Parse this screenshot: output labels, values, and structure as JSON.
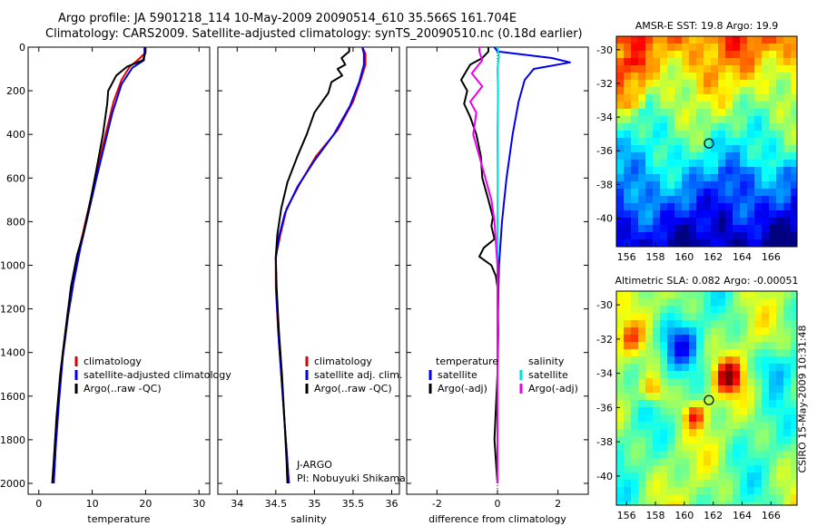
{
  "header": {
    "line1": "Argo profile: JA 5901218_114 10-May-2009 20090514_610 35.566S 161.704E",
    "line2": "Climatology: CARS2009. Satellite-adjusted climatology: synTS_20090510.nc (0.18d earlier)"
  },
  "credit": "CSIRO 15-May-2009 10:31:48",
  "colors": {
    "red": "#dd0000",
    "blue": "#0000ee",
    "black": "#000000",
    "cyan": "#00dddd",
    "magenta": "#ee00ee"
  },
  "chart_data": [
    {
      "id": "temperature",
      "type": "line",
      "xlabel": "temperature",
      "ylabel": "",
      "xlim": [
        -2,
        32
      ],
      "ylim": [
        0,
        2050
      ],
      "y_inverted": true,
      "xticks": [
        0,
        10,
        20,
        30
      ],
      "yticks": [
        0,
        200,
        400,
        600,
        800,
        1000,
        1200,
        1400,
        1600,
        1800,
        2000
      ],
      "legend": {
        "position": "lower-right",
        "entries": [
          "climatology",
          "satellite-adjusted climatology",
          "Argo(..raw -QC)"
        ]
      },
      "series": [
        {
          "name": "climatology",
          "color": "red",
          "points": [
            [
              20,
              0
            ],
            [
              20,
              25
            ],
            [
              18.5,
              60
            ],
            [
              17,
              90
            ],
            [
              15.5,
              150
            ],
            [
              14,
              250
            ],
            [
              12.5,
              400
            ],
            [
              11,
              560
            ],
            [
              9.5,
              720
            ],
            [
              8,
              880
            ],
            [
              6.5,
              1050
            ],
            [
              5.5,
              1200
            ],
            [
              4.5,
              1400
            ],
            [
              3.8,
              1600
            ],
            [
              3.2,
              1800
            ],
            [
              2.8,
              2000
            ]
          ]
        },
        {
          "name": "satellite-adjusted climatology",
          "color": "blue",
          "points": [
            [
              19.8,
              0
            ],
            [
              19.8,
              25
            ],
            [
              19.7,
              60
            ],
            [
              17.5,
              95
            ],
            [
              15.5,
              170
            ],
            [
              13.8,
              300
            ],
            [
              12.3,
              450
            ],
            [
              10.8,
              600
            ],
            [
              9.3,
              760
            ],
            [
              7.8,
              920
            ],
            [
              6.5,
              1080
            ],
            [
              5.5,
              1230
            ],
            [
              4.5,
              1420
            ],
            [
              3.8,
              1620
            ],
            [
              3.2,
              1820
            ],
            [
              2.8,
              2000
            ]
          ]
        },
        {
          "name": "Argo(..raw -QC)",
          "color": "black",
          "points": [
            [
              19.9,
              0
            ],
            [
              19.9,
              30
            ],
            [
              19.5,
              60
            ],
            [
              16.5,
              90
            ],
            [
              14.5,
              130
            ],
            [
              13,
              200
            ],
            [
              12.8,
              260
            ],
            [
              12,
              400
            ],
            [
              10.8,
              560
            ],
            [
              9.7,
              700
            ],
            [
              8.4,
              850
            ],
            [
              7.2,
              950
            ],
            [
              6,
              1100
            ],
            [
              5,
              1300
            ],
            [
              4,
              1500
            ],
            [
              3.3,
              1700
            ],
            [
              2.8,
              1900
            ],
            [
              2.5,
              2000
            ]
          ]
        }
      ]
    },
    {
      "id": "salinity",
      "type": "line",
      "xlabel": "salinity",
      "ylabel": "",
      "xlim": [
        33.75,
        36.1
      ],
      "ylim": [
        0,
        2050
      ],
      "y_inverted": true,
      "xticks": [
        34,
        34.5,
        35,
        35.5,
        36
      ],
      "yticks": [
        0,
        200,
        400,
        600,
        800,
        1000,
        1200,
        1400,
        1600,
        1800,
        2000
      ],
      "legend": {
        "position": "lower-right",
        "entries": [
          "climatology",
          "satellite adj. clim.",
          "Argo(..raw -QC)"
        ]
      },
      "annotations": [
        "J-ARGO",
        "PI: Nobuyuki Shikama"
      ],
      "series": [
        {
          "name": "climatology",
          "color": "red",
          "points": [
            [
              35.62,
              0
            ],
            [
              35.66,
              30
            ],
            [
              35.66,
              80
            ],
            [
              35.6,
              150
            ],
            [
              35.5,
              250
            ],
            [
              35.3,
              380
            ],
            [
              35.02,
              500
            ],
            [
              34.82,
              620
            ],
            [
              34.64,
              740
            ],
            [
              34.56,
              860
            ],
            [
              34.5,
              960
            ],
            [
              34.5,
              1100
            ],
            [
              34.53,
              1300
            ],
            [
              34.57,
              1500
            ],
            [
              34.61,
              1700
            ],
            [
              34.65,
              1900
            ],
            [
              34.67,
              2000
            ]
          ]
        },
        {
          "name": "satellite adj. clim.",
          "color": "blue",
          "points": [
            [
              35.62,
              0
            ],
            [
              35.64,
              30
            ],
            [
              35.64,
              80
            ],
            [
              35.58,
              160
            ],
            [
              35.46,
              270
            ],
            [
              35.25,
              400
            ],
            [
              35.0,
              520
            ],
            [
              34.78,
              640
            ],
            [
              34.62,
              760
            ],
            [
              34.54,
              870
            ],
            [
              34.5,
              970
            ],
            [
              34.51,
              1150
            ],
            [
              34.54,
              1350
            ],
            [
              34.58,
              1550
            ],
            [
              34.62,
              1750
            ],
            [
              34.66,
              1950
            ],
            [
              34.67,
              2000
            ]
          ]
        },
        {
          "name": "Argo(..raw -QC)",
          "color": "black",
          "points": [
            [
              35.45,
              0
            ],
            [
              35.45,
              20
            ],
            [
              35.35,
              50
            ],
            [
              35.4,
              80
            ],
            [
              35.3,
              100
            ],
            [
              35.36,
              130
            ],
            [
              35.22,
              160
            ],
            [
              35.18,
              210
            ],
            [
              35.0,
              300
            ],
            [
              34.9,
              400
            ],
            [
              34.78,
              500
            ],
            [
              34.65,
              620
            ],
            [
              34.57,
              740
            ],
            [
              34.52,
              860
            ],
            [
              34.5,
              960
            ],
            [
              34.51,
              1100
            ],
            [
              34.54,
              1300
            ],
            [
              34.58,
              1500
            ],
            [
              34.61,
              1700
            ],
            [
              34.64,
              1900
            ],
            [
              34.65,
              2000
            ]
          ]
        }
      ]
    },
    {
      "id": "difference",
      "type": "line",
      "xlabel": "difference from climatology",
      "ylabel": "",
      "xlim": [
        -3,
        3
      ],
      "ylim": [
        0,
        2050
      ],
      "y_inverted": true,
      "xticks": [
        -2,
        0,
        2
      ],
      "yticks": [
        0,
        200,
        400,
        600,
        800,
        1000,
        1200,
        1400,
        1600,
        1800,
        2000
      ],
      "legend_left": {
        "title": "temperature",
        "entries": [
          "satellite",
          "Argo(-adj)"
        ]
      },
      "legend_right": {
        "title": "salinity",
        "entries": [
          "satellite",
          "Argo(-adj)"
        ]
      },
      "series": [
        {
          "name": "temperature satellite",
          "color": "blue",
          "points": [
            [
              -0.1,
              0
            ],
            [
              0,
              20
            ],
            [
              1.8,
              50
            ],
            [
              2.4,
              70
            ],
            [
              1.2,
              100
            ],
            [
              0.9,
              150
            ],
            [
              0.7,
              250
            ],
            [
              0.5,
              400
            ],
            [
              0.3,
              600
            ],
            [
              0.15,
              800
            ],
            [
              0.05,
              1000
            ],
            [
              0,
              1300
            ],
            [
              0,
              2000
            ]
          ]
        },
        {
          "name": "temperature Argo(-adj)",
          "color": "black",
          "points": [
            [
              -0.3,
              0
            ],
            [
              -0.3,
              20
            ],
            [
              -0.5,
              50
            ],
            [
              -0.9,
              80
            ],
            [
              -1.2,
              150
            ],
            [
              -1.0,
              200
            ],
            [
              -1.1,
              260
            ],
            [
              -0.9,
              320
            ],
            [
              -0.7,
              400
            ],
            [
              -0.55,
              500
            ],
            [
              -0.5,
              600
            ],
            [
              -0.3,
              700
            ],
            [
              -0.15,
              780
            ],
            [
              -0.2,
              820
            ],
            [
              -0.1,
              880
            ],
            [
              -0.45,
              920
            ],
            [
              -0.6,
              960
            ],
            [
              -0.2,
              1000
            ],
            [
              -0.05,
              1050
            ],
            [
              0,
              1100
            ],
            [
              0.02,
              1300
            ],
            [
              0,
              1500
            ],
            [
              -0.1,
              1800
            ],
            [
              0,
              2000
            ]
          ]
        },
        {
          "name": "salinity satellite",
          "color": "cyan",
          "points": [
            [
              0,
              0
            ],
            [
              0.05,
              40
            ],
            [
              0,
              100
            ],
            [
              0.02,
              200
            ],
            [
              0,
              400
            ],
            [
              0.01,
              600
            ],
            [
              0,
              800
            ],
            [
              0,
              1000
            ],
            [
              0,
              1500
            ],
            [
              0,
              2000
            ]
          ]
        },
        {
          "name": "salinity Argo(-adj)",
          "color": "magenta",
          "points": [
            [
              -0.6,
              0
            ],
            [
              -0.6,
              20
            ],
            [
              -0.5,
              60
            ],
            [
              -0.85,
              120
            ],
            [
              -0.5,
              180
            ],
            [
              -0.9,
              250
            ],
            [
              -0.7,
              300
            ],
            [
              -0.8,
              400
            ],
            [
              -0.6,
              500
            ],
            [
              -0.4,
              600
            ],
            [
              -0.2,
              700
            ],
            [
              -0.1,
              800
            ],
            [
              -0.05,
              900
            ],
            [
              0,
              1000
            ],
            [
              0,
              2000
            ]
          ]
        }
      ]
    },
    {
      "id": "sst-map",
      "type": "heatmap",
      "title": "AMSR-E SST: 19.8 Argo: 19.9",
      "xlim": [
        155.3,
        167.8
      ],
      "ylim": [
        -41.7,
        -29.2
      ],
      "xticks": [
        156,
        158,
        160,
        162,
        164,
        166
      ],
      "yticks": [
        -30,
        -32,
        -34,
        -36,
        -38,
        -40
      ],
      "marker": {
        "lon": 161.704,
        "lat": -35.566
      }
    },
    {
      "id": "sla-map",
      "type": "heatmap",
      "title": "Altimetric SLA: 0.082 Argo: -0.00051",
      "xlim": [
        155.3,
        167.8
      ],
      "ylim": [
        -41.7,
        -29.2
      ],
      "xticks": [
        156,
        158,
        160,
        162,
        164,
        166
      ],
      "yticks": [
        -30,
        -32,
        -34,
        -36,
        -38,
        -40
      ],
      "marker": {
        "lon": 161.704,
        "lat": -35.566
      }
    }
  ]
}
